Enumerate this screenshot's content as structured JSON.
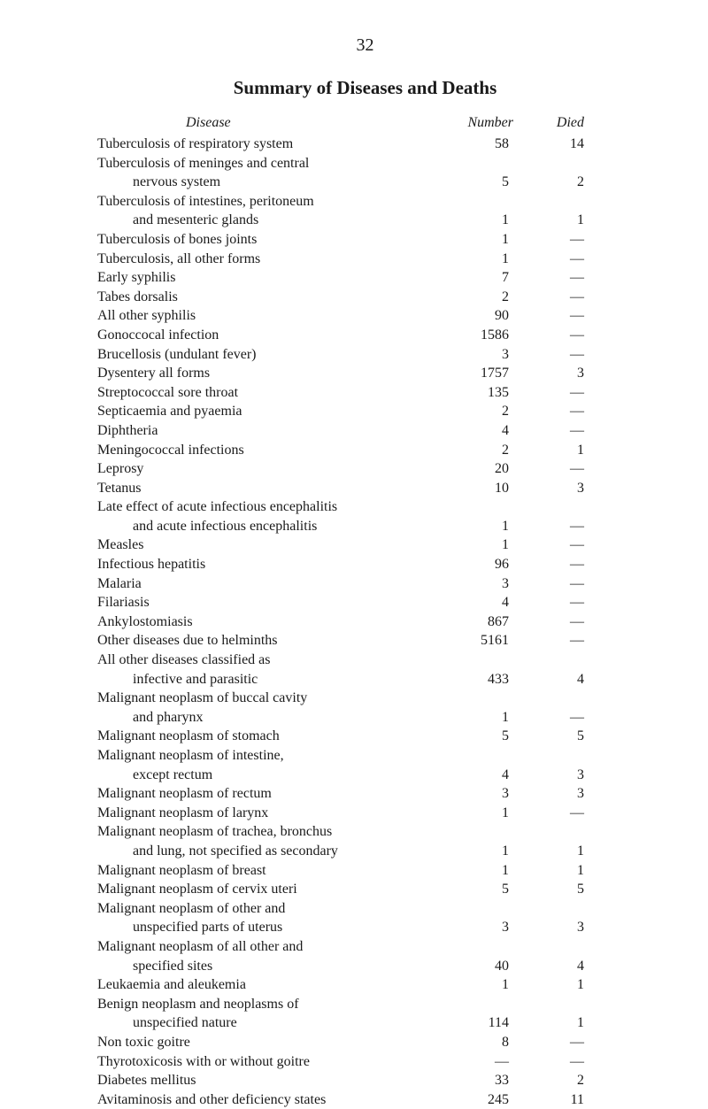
{
  "page_number": "32",
  "title": "Summary of Diseases and Deaths",
  "headers": {
    "disease": "Disease",
    "number": "Number",
    "died": "Died"
  },
  "rows": [
    {
      "disease": "Tuberculosis of respiratory system",
      "number": "58",
      "died": "14",
      "indent": false
    },
    {
      "disease": "Tuberculosis of meninges and central",
      "number": "",
      "died": "",
      "indent": false
    },
    {
      "disease": "nervous system",
      "number": "5",
      "died": "2",
      "indent": true
    },
    {
      "disease": "Tuberculosis of intestines, peritoneum",
      "number": "",
      "died": "",
      "indent": false
    },
    {
      "disease": "and mesenteric glands",
      "number": "1",
      "died": "1",
      "indent": true
    },
    {
      "disease": "Tuberculosis of bones joints",
      "number": "1",
      "died": "—",
      "indent": false
    },
    {
      "disease": "Tuberculosis, all other forms",
      "number": "1",
      "died": "—",
      "indent": false
    },
    {
      "disease": "Early syphilis",
      "number": "7",
      "died": "—",
      "indent": false
    },
    {
      "disease": "Tabes dorsalis",
      "number": "2",
      "died": "—",
      "indent": false
    },
    {
      "disease": "All other syphilis",
      "number": "90",
      "died": "—",
      "indent": false
    },
    {
      "disease": "Gonoccocal infection",
      "number": "1586",
      "died": "—",
      "indent": false
    },
    {
      "disease": "Brucellosis (undulant fever)",
      "number": "3",
      "died": "—",
      "indent": false
    },
    {
      "disease": "Dysentery all forms",
      "number": "1757",
      "died": "3",
      "indent": false
    },
    {
      "disease": "Streptococcal sore throat",
      "number": "135",
      "died": "—",
      "indent": false
    },
    {
      "disease": "Septicaemia and pyaemia",
      "number": "2",
      "died": "—",
      "indent": false
    },
    {
      "disease": "Diphtheria",
      "number": "4",
      "died": "—",
      "indent": false
    },
    {
      "disease": "Meningococcal infections",
      "number": "2",
      "died": "1",
      "indent": false
    },
    {
      "disease": "Leprosy",
      "number": "20",
      "died": "—",
      "indent": false
    },
    {
      "disease": "Tetanus",
      "number": "10",
      "died": "3",
      "indent": false
    },
    {
      "disease": "Late effect of acute infectious encephalitis",
      "number": "",
      "died": "",
      "indent": false
    },
    {
      "disease": "and acute infectious encephalitis",
      "number": "1",
      "died": "—",
      "indent": true
    },
    {
      "disease": "Measles",
      "number": "1",
      "died": "—",
      "indent": false
    },
    {
      "disease": "Infectious hepatitis",
      "number": "96",
      "died": "—",
      "indent": false
    },
    {
      "disease": "Malaria",
      "number": "3",
      "died": "—",
      "indent": false
    },
    {
      "disease": "Filariasis",
      "number": "4",
      "died": "—",
      "indent": false
    },
    {
      "disease": "Ankylostomiasis",
      "number": "867",
      "died": "—",
      "indent": false
    },
    {
      "disease": "Other diseases due to helminths",
      "number": "5161",
      "died": "—",
      "indent": false
    },
    {
      "disease": "All other diseases classified as",
      "number": "",
      "died": "",
      "indent": false
    },
    {
      "disease": "infective and parasitic",
      "number": "433",
      "died": "4",
      "indent": true
    },
    {
      "disease": "Malignant neoplasm of buccal cavity",
      "number": "",
      "died": "",
      "indent": false
    },
    {
      "disease": "and pharynx",
      "number": "1",
      "died": "—",
      "indent": true
    },
    {
      "disease": "Malignant neoplasm of stomach",
      "number": "5",
      "died": "5",
      "indent": false
    },
    {
      "disease": "Malignant neoplasm of intestine,",
      "number": "",
      "died": "",
      "indent": false
    },
    {
      "disease": "except rectum",
      "number": "4",
      "died": "3",
      "indent": true
    },
    {
      "disease": "Malignant neoplasm of rectum",
      "number": "3",
      "died": "3",
      "indent": false
    },
    {
      "disease": "Malignant neoplasm of larynx",
      "number": "1",
      "died": "—",
      "indent": false
    },
    {
      "disease": "Malignant neoplasm of trachea, bronchus",
      "number": "",
      "died": "",
      "indent": false
    },
    {
      "disease": "and lung, not specified as secondary",
      "number": "1",
      "died": "1",
      "indent": true
    },
    {
      "disease": "Malignant neoplasm of breast",
      "number": "1",
      "died": "1",
      "indent": false
    },
    {
      "disease": "Malignant neoplasm of cervix uteri",
      "number": "5",
      "died": "5",
      "indent": false
    },
    {
      "disease": "Malignant neoplasm of other and",
      "number": "",
      "died": "",
      "indent": false
    },
    {
      "disease": "unspecified parts of uterus",
      "number": "3",
      "died": "3",
      "indent": true
    },
    {
      "disease": "Malignant neoplasm of all other and",
      "number": "",
      "died": "",
      "indent": false
    },
    {
      "disease": "specified sites",
      "number": "40",
      "died": "4",
      "indent": true
    },
    {
      "disease": "Leukaemia and aleukemia",
      "number": "1",
      "died": "1",
      "indent": false
    },
    {
      "disease": "Benign neoplasm and neoplasms of",
      "number": "",
      "died": "",
      "indent": false
    },
    {
      "disease": "unspecified nature",
      "number": "114",
      "died": "1",
      "indent": true
    },
    {
      "disease": "Non toxic goitre",
      "number": "8",
      "died": "—",
      "indent": false
    },
    {
      "disease": "Thyrotoxicosis with or without goitre",
      "number": "—",
      "died": "—",
      "indent": false
    },
    {
      "disease": "Diabetes mellitus",
      "number": "33",
      "died": "2",
      "indent": false
    },
    {
      "disease": "Avitaminosis and other deficiency states",
      "number": "245",
      "died": "11",
      "indent": false
    }
  ]
}
